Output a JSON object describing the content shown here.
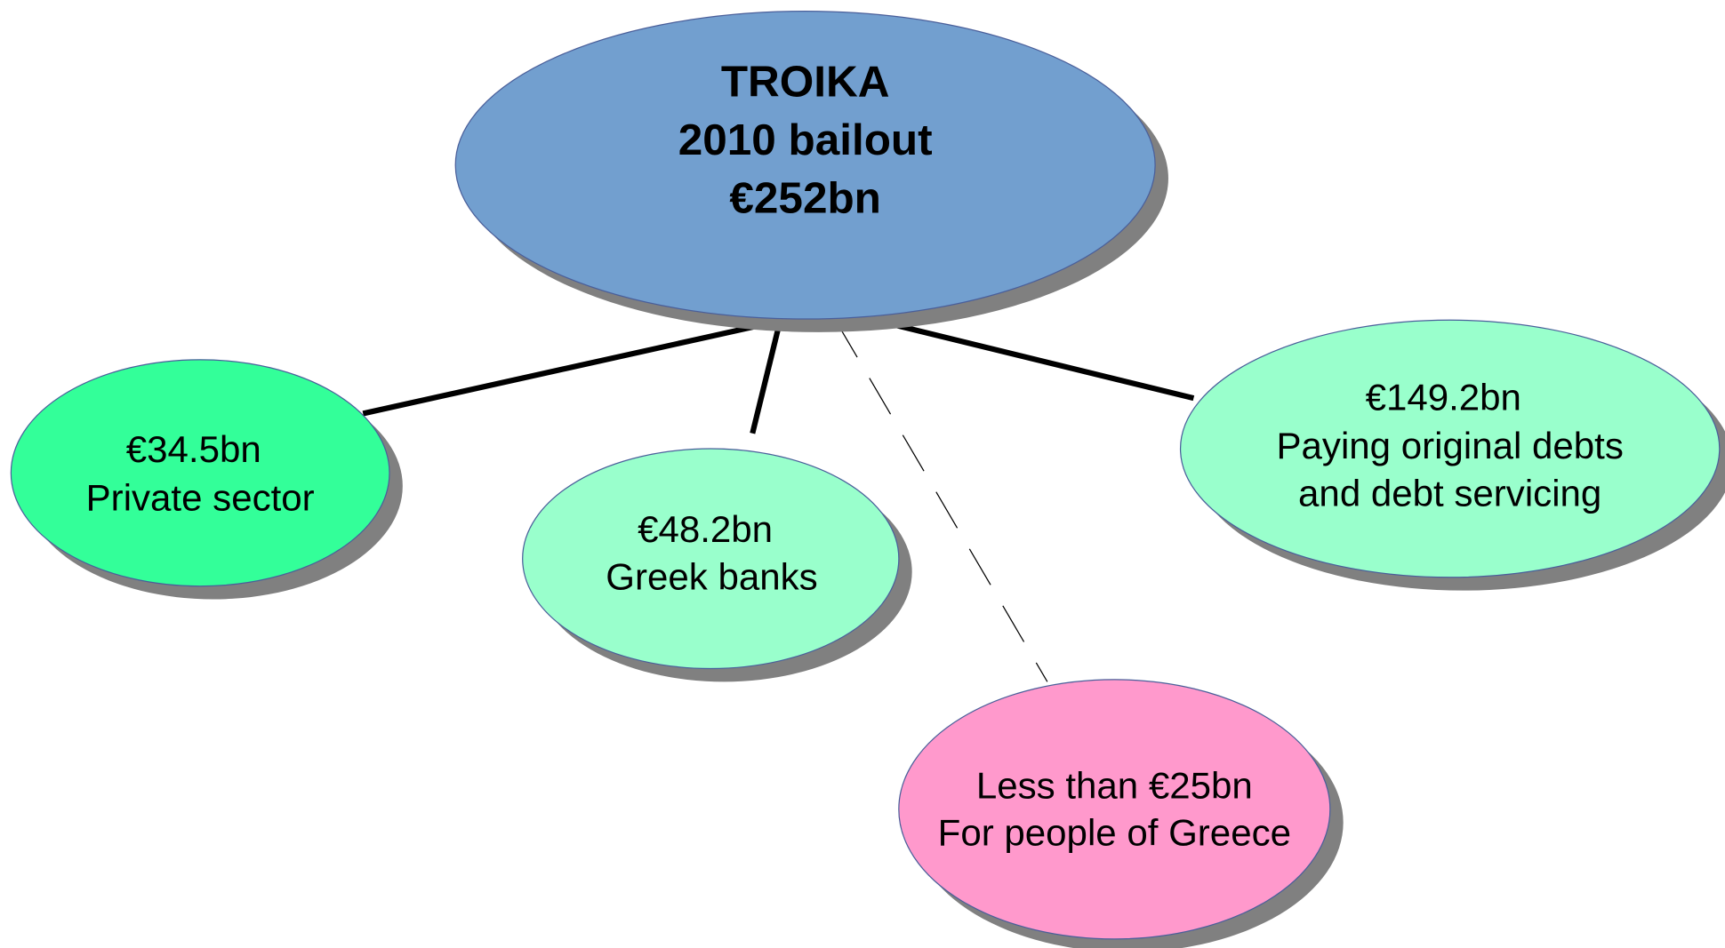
{
  "nodes": [
    {
      "lines": [
        "TROIKA",
        "2010 bailout",
        "€252bn"
      ]
    },
    {
      "lines": [
        "€34.5bn",
        "Private sector"
      ]
    },
    {
      "lines": [
        "€48.2bn",
        "Greek banks"
      ]
    },
    {
      "lines": [
        "€149.2bn",
        "Paying original debts",
        "and debt servicing"
      ]
    },
    {
      "lines": [
        "Less than €25bn",
        "For people of Greece"
      ]
    }
  ]
}
